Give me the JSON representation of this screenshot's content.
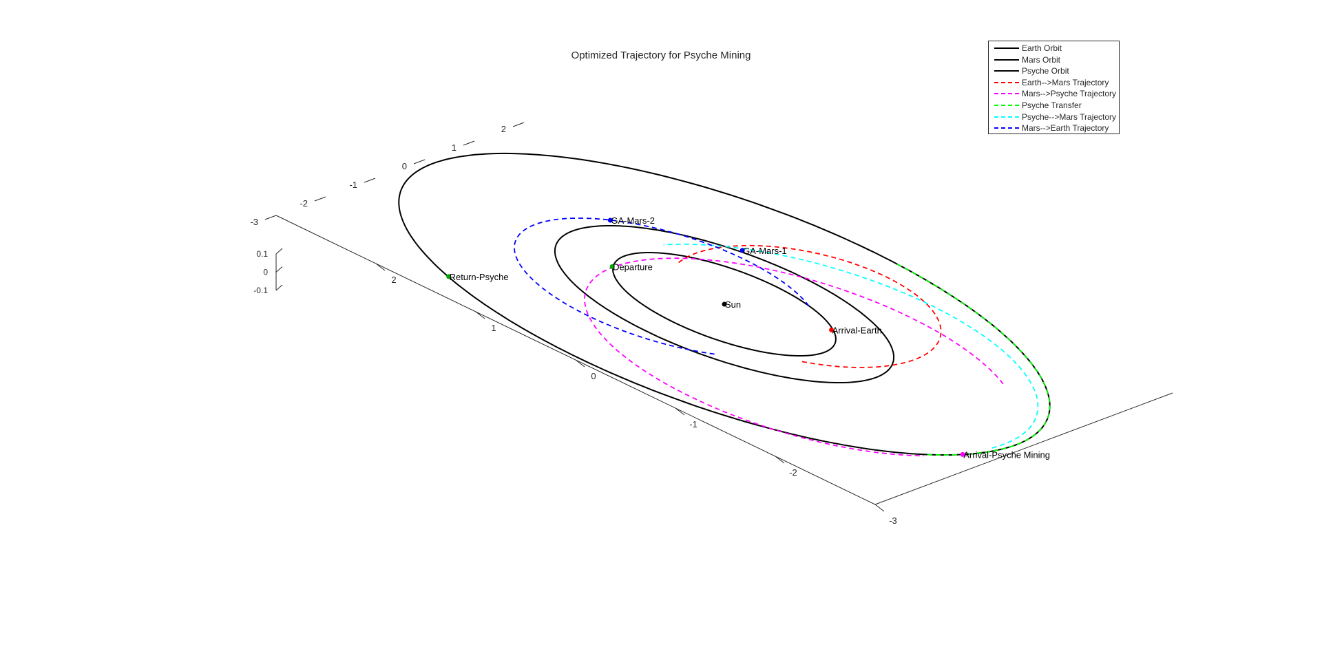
{
  "chart_data": {
    "type": "line",
    "title": "Optimized Trajectory for Psyche Mining",
    "xlim": [
      -3,
      3
    ],
    "ylim": [
      -3,
      3
    ],
    "zlim": [
      -0.1,
      0.1
    ],
    "x_ticks": [
      "2",
      "1",
      "0",
      "-1",
      "-2",
      "-3"
    ],
    "y_ticks": [
      "2",
      "1",
      "0",
      "-1",
      "-2",
      "-3"
    ],
    "z_ticks": [
      "0.1",
      "0",
      "-0.1"
    ],
    "grid": false,
    "legend_position": "top-right",
    "series": [
      {
        "name": "Earth Orbit",
        "style": "solid",
        "color": "#000000",
        "center": [
          0,
          0
        ],
        "radii": [
          1.0,
          1.0
        ]
      },
      {
        "name": "Mars Orbit",
        "style": "solid",
        "color": "#000000",
        "center": [
          0,
          0
        ],
        "radii": [
          1.52,
          1.52
        ]
      },
      {
        "name": "Psyche Orbit",
        "style": "solid",
        "color": "#000000",
        "center": [
          0,
          0
        ],
        "radii": [
          2.92,
          2.92
        ]
      },
      {
        "name": "Earth-->Mars Trajectory",
        "style": "dashed",
        "color": "#ff0000",
        "center": [
          0.86,
          -0.38
        ],
        "radii": [
          1.62,
          1.1
        ],
        "arc_deg": [
          215,
          465
        ]
      },
      {
        "name": "Mars-->Psyche Trajectory",
        "style": "dashed",
        "color": "#ff00ff",
        "center": [
          -0.38,
          -0.95
        ],
        "radii": [
          2.18,
          1.87
        ],
        "arc_deg": [
          -40,
          245
        ]
      },
      {
        "name": "Psyche Transfer",
        "style": "dashed",
        "color": "#00ff00",
        "center": [
          0,
          0
        ],
        "radii": [
          2.92,
          2.92
        ],
        "arc_deg": [
          245,
          355
        ]
      },
      {
        "name": "Psyche-->Mars Trajectory",
        "style": "dashed",
        "color": "#00ffff",
        "center": [
          -0.13,
          -0.89
        ],
        "radii": [
          2.45,
          1.97
        ],
        "arc_deg": [
          -95,
          70
        ]
      },
      {
        "name": "Mars-->Earth Trajectory",
        "style": "dashed",
        "color": "#0000ff",
        "center": [
          -0.27,
          0.45
        ],
        "radii": [
          1.55,
          1.31
        ],
        "arc_deg": [
          -40,
          230
        ]
      }
    ],
    "points": [
      {
        "label": "Sun",
        "x": 0.0,
        "y": 0.0,
        "color": "#000000"
      },
      {
        "label": "Departure",
        "x": -0.39,
        "y": 0.93,
        "color": "#00aa00"
      },
      {
        "label": "GA-Mars-2",
        "x": 0.68,
        "y": 1.48,
        "color": "#0000ff"
      },
      {
        "label": "GA-Mars-1",
        "x": 1.47,
        "y": 0.55,
        "color": "#0000ff"
      },
      {
        "label": "Arrival-Earth",
        "x": 0.61,
        "y": -0.77,
        "color": "#ff0000"
      },
      {
        "label": "Return-Psyche",
        "x": -2.48,
        "y": 1.53,
        "color": "#00aa00"
      },
      {
        "label": "Arrival-Psyche Mining",
        "x": -0.83,
        "y": -2.8,
        "color": "#ff00ff"
      }
    ]
  }
}
